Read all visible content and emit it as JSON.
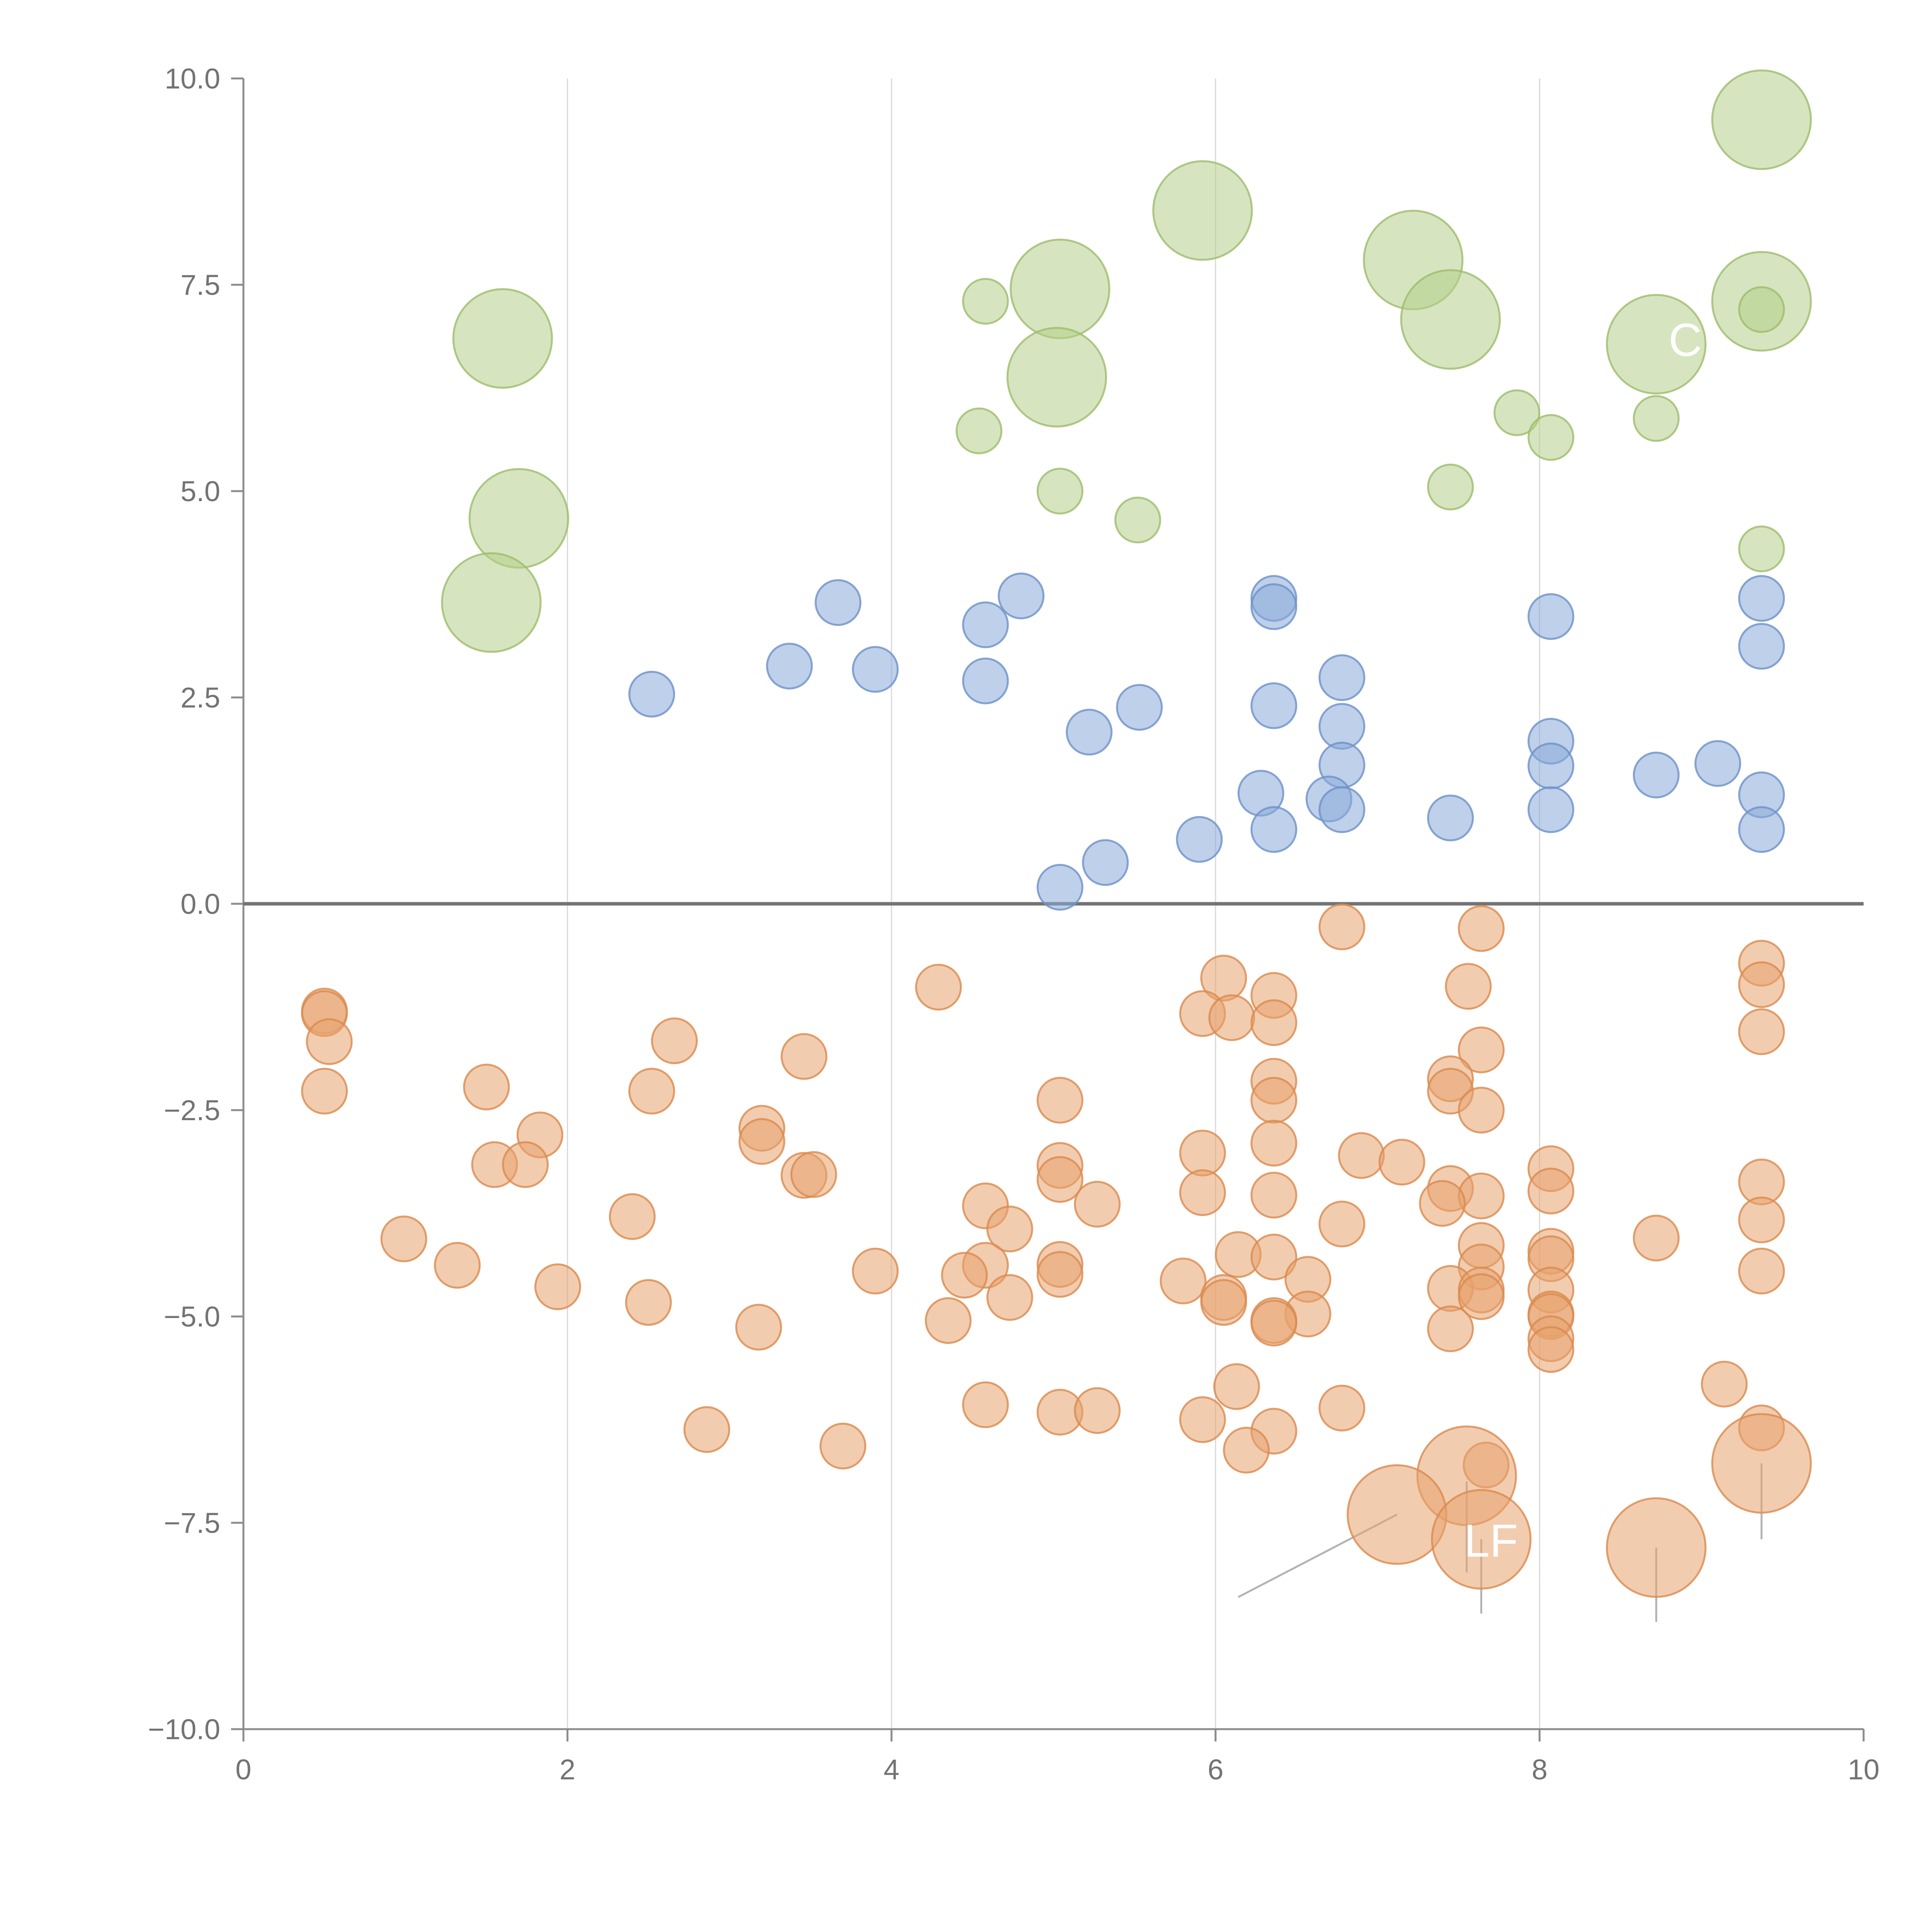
{
  "chart_data": {
    "type": "scatter",
    "title": "",
    "xlabel": "",
    "ylabel": "",
    "xlim": [
      0,
      10
    ],
    "ylim": [
      -10,
      10
    ],
    "grid": "vertical gridlines at major x ticks",
    "x_ticks": [
      0,
      2,
      4,
      6,
      8,
      10
    ],
    "x_tick_labels": [
      "0",
      "2",
      "4",
      "6",
      "8",
      "10"
    ],
    "y_ticks": [
      10,
      7.5,
      5,
      2.5,
      0,
      -2.5,
      -5,
      -7.5,
      -10
    ],
    "y_tick_labels": [
      "10.0",
      "7.5",
      "5.0",
      "2.5",
      "0.0",
      "−2.5",
      "−5.0",
      "−7.5",
      "−10.0"
    ],
    "reference_line_y": 0,
    "series": [
      {
        "name": "green",
        "color": "#b5cf8a",
        "stroke": "#9dbc6c",
        "size_note": "r = point radius in data-relative units",
        "points": [
          [
            9.37,
            9.5,
            2.2
          ],
          [
            5.92,
            8.4,
            2.2
          ],
          [
            7.22,
            7.8,
            2.2
          ],
          [
            5.04,
            7.45,
            2.2
          ],
          [
            9.37,
            7.3,
            2.2
          ],
          [
            4.58,
            7.3,
            1.0
          ],
          [
            7.45,
            7.08,
            2.2
          ],
          [
            1.6,
            6.85,
            2.2
          ],
          [
            8.72,
            6.78,
            2.2
          ],
          [
            5.02,
            6.38,
            2.2
          ],
          [
            7.86,
            5.95,
            1.0
          ],
          [
            8.72,
            5.88,
            1.0
          ],
          [
            4.54,
            5.73,
            1.0
          ],
          [
            8.07,
            5.65,
            1.0
          ],
          [
            7.45,
            5.05,
            1.0
          ],
          [
            5.04,
            5.0,
            1.0
          ],
          [
            5.52,
            4.65,
            1.0
          ],
          [
            9.37,
            4.3,
            1.0
          ],
          [
            1.7,
            4.67,
            2.2
          ],
          [
            1.53,
            3.65,
            2.2
          ],
          [
            9.37,
            7.2,
            1.0
          ]
        ]
      },
      {
        "name": "blue",
        "color": "#88a9d9",
        "stroke": "#6d90c8",
        "points": [
          [
            3.67,
            3.65,
            1.0
          ],
          [
            4.8,
            3.73,
            1.0
          ],
          [
            6.36,
            3.7,
            1.0
          ],
          [
            6.36,
            3.6,
            1.0
          ],
          [
            4.58,
            3.38,
            1.0
          ],
          [
            8.07,
            3.48,
            1.0
          ],
          [
            9.37,
            3.7,
            1.0
          ],
          [
            9.37,
            3.12,
            1.0
          ],
          [
            3.37,
            2.88,
            1.0
          ],
          [
            3.9,
            2.84,
            1.0
          ],
          [
            2.52,
            2.54,
            1.0
          ],
          [
            4.58,
            2.7,
            1.0
          ],
          [
            6.78,
            2.74,
            1.0
          ],
          [
            5.53,
            2.38,
            1.0
          ],
          [
            6.36,
            2.4,
            1.0
          ],
          [
            5.22,
            2.08,
            1.0
          ],
          [
            6.78,
            2.15,
            1.0
          ],
          [
            8.07,
            1.97,
            1.0
          ],
          [
            6.78,
            1.68,
            1.0
          ],
          [
            8.07,
            1.67,
            1.0
          ],
          [
            9.1,
            1.7,
            1.0
          ],
          [
            8.72,
            1.56,
            1.0
          ],
          [
            6.28,
            1.34,
            1.0
          ],
          [
            6.7,
            1.27,
            1.0
          ],
          [
            9.37,
            1.32,
            1.0
          ],
          [
            6.78,
            1.14,
            1.0
          ],
          [
            8.07,
            1.14,
            1.0
          ],
          [
            7.45,
            1.04,
            1.0
          ],
          [
            6.36,
            0.9,
            1.0
          ],
          [
            9.37,
            0.9,
            1.0
          ],
          [
            5.9,
            0.78,
            1.0
          ],
          [
            5.32,
            0.5,
            1.0
          ],
          [
            5.04,
            0.2,
            1.0
          ]
        ]
      },
      {
        "name": "orange",
        "color": "#e8a36e",
        "stroke": "#d9894d",
        "points": [
          [
            6.78,
            -0.28,
            1.0
          ],
          [
            7.64,
            -0.3,
            1.0
          ],
          [
            9.37,
            -0.72,
            1.0
          ],
          [
            9.37,
            -0.98,
            1.0
          ],
          [
            6.05,
            -0.9,
            1.0
          ],
          [
            4.29,
            -1.01,
            1.0
          ],
          [
            7.56,
            -1.0,
            1.0
          ],
          [
            6.36,
            -1.11,
            1.0
          ],
          [
            0.5,
            -1.3,
            1.0
          ],
          [
            0.5,
            -1.33,
            1.0
          ],
          [
            5.92,
            -1.33,
            1.0
          ],
          [
            6.1,
            -1.38,
            1.0
          ],
          [
            6.36,
            -1.44,
            1.0
          ],
          [
            9.37,
            -1.55,
            1.0
          ],
          [
            0.53,
            -1.67,
            1.0
          ],
          [
            2.66,
            -1.66,
            1.0
          ],
          [
            7.64,
            -1.77,
            1.0
          ],
          [
            3.46,
            -1.85,
            1.0
          ],
          [
            6.36,
            -2.15,
            1.0
          ],
          [
            7.45,
            -2.12,
            1.0
          ],
          [
            7.45,
            -2.27,
            1.0
          ],
          [
            0.5,
            -2.27,
            1.0
          ],
          [
            1.5,
            -2.22,
            1.0
          ],
          [
            2.52,
            -2.27,
            1.0
          ],
          [
            5.04,
            -2.38,
            1.0
          ],
          [
            6.36,
            -2.38,
            1.0
          ],
          [
            7.64,
            -2.5,
            1.0
          ],
          [
            1.83,
            -2.8,
            1.0
          ],
          [
            3.2,
            -2.72,
            1.0
          ],
          [
            3.2,
            -2.88,
            1.0
          ],
          [
            6.36,
            -2.9,
            1.0
          ],
          [
            5.92,
            -3.02,
            1.0
          ],
          [
            6.9,
            -3.05,
            1.0
          ],
          [
            7.15,
            -3.13,
            1.0
          ],
          [
            8.07,
            -3.21,
            1.0
          ],
          [
            1.55,
            -3.16,
            1.0
          ],
          [
            1.74,
            -3.16,
            1.0
          ],
          [
            5.04,
            -3.17,
            1.0
          ],
          [
            3.46,
            -3.29,
            1.0
          ],
          [
            3.52,
            -3.28,
            1.0
          ],
          [
            5.04,
            -3.34,
            1.0
          ],
          [
            9.37,
            -3.37,
            1.0
          ],
          [
            7.45,
            -3.45,
            1.0
          ],
          [
            8.07,
            -3.48,
            1.0
          ],
          [
            5.92,
            -3.5,
            1.0
          ],
          [
            6.36,
            -3.53,
            1.0
          ],
          [
            7.64,
            -3.54,
            1.0
          ],
          [
            4.58,
            -3.66,
            1.0
          ],
          [
            5.27,
            -3.64,
            1.0
          ],
          [
            7.4,
            -3.63,
            1.0
          ],
          [
            2.4,
            -3.79,
            1.0
          ],
          [
            9.37,
            -3.83,
            1.0
          ],
          [
            6.78,
            -3.88,
            1.0
          ],
          [
            4.73,
            -3.94,
            1.0
          ],
          [
            0.99,
            -4.06,
            1.0
          ],
          [
            8.72,
            -4.05,
            1.0
          ],
          [
            7.64,
            -4.14,
            1.0
          ],
          [
            8.07,
            -4.21,
            1.0
          ],
          [
            6.14,
            -4.25,
            1.0
          ],
          [
            6.36,
            -4.28,
            1.0
          ],
          [
            8.07,
            -4.3,
            1.0
          ],
          [
            1.32,
            -4.38,
            1.0
          ],
          [
            4.58,
            -4.38,
            1.0
          ],
          [
            5.04,
            -4.37,
            1.0
          ],
          [
            7.64,
            -4.4,
            1.0
          ],
          [
            9.37,
            -4.45,
            1.0
          ],
          [
            3.9,
            -4.45,
            1.0
          ],
          [
            4.45,
            -4.5,
            1.0
          ],
          [
            5.04,
            -4.49,
            1.0
          ],
          [
            6.57,
            -4.55,
            1.0
          ],
          [
            5.8,
            -4.57,
            1.0
          ],
          [
            1.94,
            -4.64,
            1.0
          ],
          [
            7.45,
            -4.66,
            1.0
          ],
          [
            8.07,
            -4.68,
            1.0
          ],
          [
            7.64,
            -4.68,
            1.0
          ],
          [
            7.64,
            -4.76,
            1.0
          ],
          [
            4.73,
            -4.77,
            1.0
          ],
          [
            6.05,
            -4.77,
            1.0
          ],
          [
            6.05,
            -4.83,
            1.0
          ],
          [
            2.5,
            -4.83,
            1.0
          ],
          [
            6.57,
            -4.97,
            1.0
          ],
          [
            8.07,
            -4.97,
            1.0
          ],
          [
            8.07,
            -5.0,
            1.0
          ],
          [
            4.35,
            -5.05,
            1.0
          ],
          [
            6.36,
            -5.05,
            1.0
          ],
          [
            6.36,
            -5.08,
            1.0
          ],
          [
            3.18,
            -5.13,
            1.0
          ],
          [
            7.45,
            -5.15,
            1.0
          ],
          [
            8.07,
            -5.27,
            1.0
          ],
          [
            8.07,
            -5.4,
            1.0
          ],
          [
            6.13,
            -5.85,
            1.0
          ],
          [
            9.14,
            -5.82,
            1.0
          ],
          [
            4.58,
            -6.07,
            1.0
          ],
          [
            6.78,
            -6.11,
            1.0
          ],
          [
            5.04,
            -6.16,
            1.0
          ],
          [
            5.27,
            -6.14,
            1.0
          ],
          [
            5.92,
            -6.25,
            1.0
          ],
          [
            2.86,
            -6.37,
            1.0
          ],
          [
            6.36,
            -6.39,
            1.0
          ],
          [
            9.37,
            -6.35,
            1.0
          ],
          [
            3.7,
            -6.57,
            1.0
          ],
          [
            6.19,
            -6.62,
            1.0
          ],
          [
            7.67,
            -6.8,
            1.0
          ],
          [
            9.37,
            -6.78,
            2.2
          ],
          [
            7.55,
            -6.93,
            2.2
          ],
          [
            7.12,
            -7.4,
            2.2
          ],
          [
            7.64,
            -7.7,
            2.2
          ],
          [
            8.72,
            -7.8,
            2.2
          ]
        ]
      }
    ],
    "annotations": [
      {
        "text": "LF",
        "x": 7.7,
        "y": -7.7
      },
      {
        "text": "C",
        "x": 8.9,
        "y": 6.85
      }
    ],
    "leader_lines": [
      [
        6.14,
        -8.4,
        7.12,
        -7.4
      ],
      [
        7.55,
        -7.0,
        7.55,
        -8.1
      ],
      [
        7.64,
        -7.7,
        7.64,
        -8.6
      ],
      [
        8.72,
        -7.8,
        8.72,
        -8.7
      ],
      [
        9.37,
        -6.78,
        9.37,
        -7.7
      ],
      [
        1.56,
        3.65,
        1.9,
        3.73
      ],
      [
        9.17,
        9.55,
        9.3,
        9.5
      ],
      [
        5.68,
        8.55,
        5.82,
        8.42
      ],
      [
        7.02,
        8.0,
        7.15,
        7.82
      ],
      [
        4.92,
        7.2,
        5.0,
        7.45
      ],
      [
        5.0,
        6.5,
        5.07,
        6.2
      ],
      [
        8.78,
        6.3,
        8.72,
        6.58
      ],
      [
        9.2,
        7.05,
        9.3,
        7.25
      ]
    ]
  }
}
